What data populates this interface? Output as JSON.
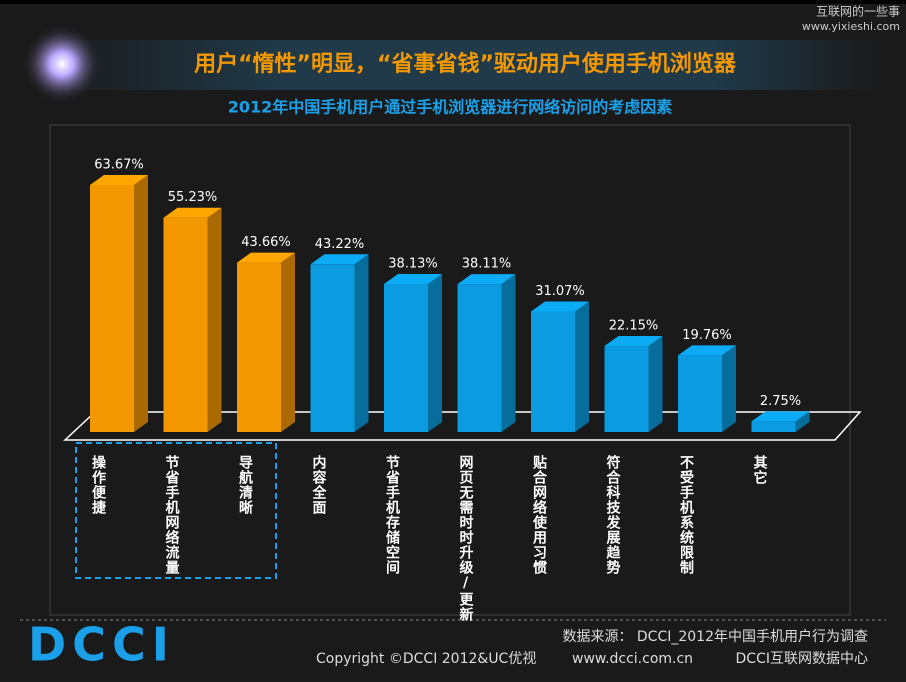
{
  "chart_data": {
    "type": "bar",
    "title": "用户“惰性”明显，“省事省钱”驱动用户使用手机浏览器",
    "subtitle": "2012年中国手机用户通过手机浏览器进行网络访问的考虑因素",
    "categories": [
      "操作便捷",
      "节省手机网络流量",
      "导航清晰",
      "内容全面",
      "节省手机存储空间",
      "网页无需时时升级/更新",
      "贴合网络使用习惯",
      "符合科技发展趋势",
      "不受手机系统限制",
      "其它"
    ],
    "values": [
      63.67,
      55.23,
      43.66,
      43.22,
      38.13,
      38.11,
      31.07,
      22.15,
      19.76,
      2.75
    ],
    "value_labels": [
      "63.67%",
      "55.23%",
      "43.66%",
      "43.22%",
      "38.13%",
      "38.11%",
      "31.07%",
      "22.15%",
      "19.76%",
      "2.75%"
    ],
    "colors": [
      "#f39800",
      "#f39800",
      "#f39800",
      "#0a9be0",
      "#0a9be0",
      "#0a9be0",
      "#0a9be0",
      "#0a9be0",
      "#0a9be0",
      "#0a9be0"
    ],
    "watermark": [
      "互联网的一些事",
      "www.yixieshi.com"
    ],
    "logo": "DCCI",
    "source": "数据来源： DCCI_2012年中国手机用户行为调查",
    "footer": [
      "Copyright ©DCCI 2012&UC优视",
      "www.dcci.com.cn",
      "DCCI互联网数据中心"
    ]
  }
}
